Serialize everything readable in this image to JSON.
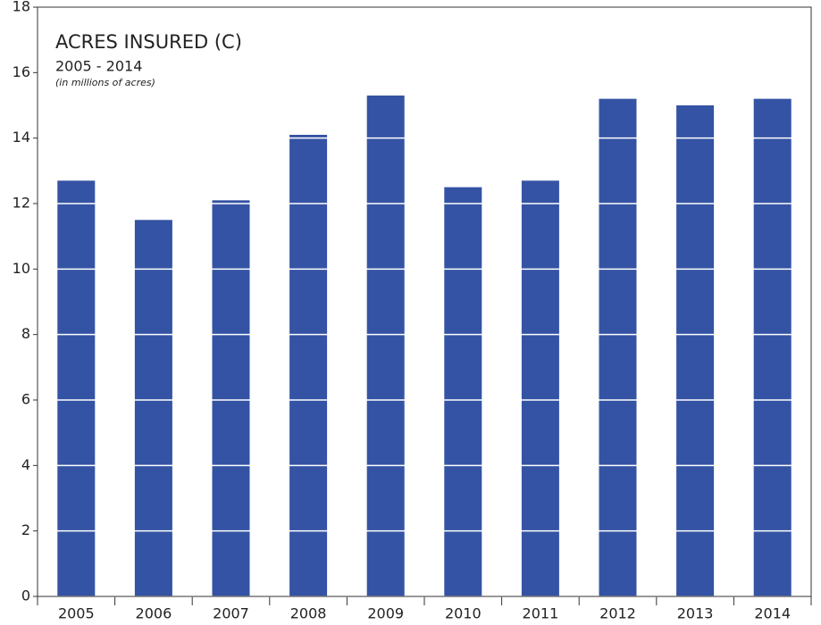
{
  "chart_data": {
    "type": "bar",
    "title": "ACRES INSURED (C)",
    "subtitle": "2005 - 2014",
    "note": "(in millions of acres)",
    "categories": [
      "2005",
      "2006",
      "2007",
      "2008",
      "2009",
      "2010",
      "2011",
      "2012",
      "2013",
      "2014"
    ],
    "values": [
      12.7,
      11.5,
      12.1,
      14.1,
      15.3,
      12.5,
      12.7,
      15.2,
      15.0,
      15.2
    ],
    "color": "#3453a4",
    "ylim": [
      0,
      18
    ],
    "yticks": [
      0,
      2,
      4,
      6,
      8,
      10,
      12,
      14,
      16,
      18
    ],
    "grid": true,
    "grid_color": "#ffffff"
  }
}
